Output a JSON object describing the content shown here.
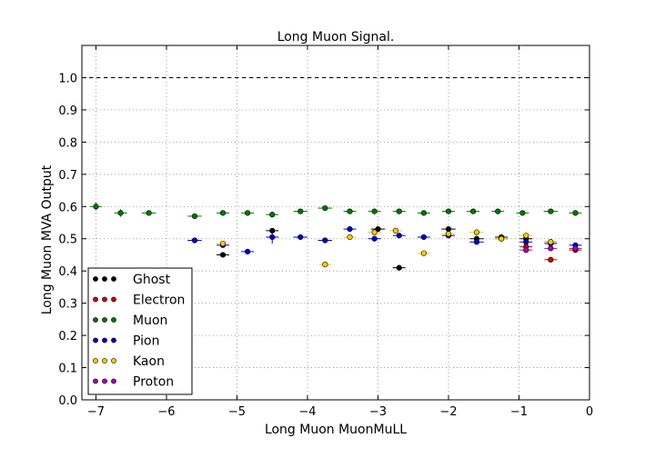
{
  "chart_data": {
    "type": "scatter",
    "title": "Long Muon Signal.",
    "xlabel": "Long Muon MuonMuLL",
    "ylabel": "Long Muon MVA Output",
    "xlim": [
      -7.2,
      0
    ],
    "ylim": [
      0,
      1.1
    ],
    "xticks": [
      -7,
      -6,
      -5,
      -4,
      -3,
      -2,
      -1,
      0
    ],
    "xtick_labels": [
      "−7",
      "−6",
      "−5",
      "−4",
      "−3",
      "−2",
      "−1",
      "0"
    ],
    "yticks": [
      0.0,
      0.1,
      0.2,
      0.3,
      0.4,
      0.5,
      0.6,
      0.7,
      0.8,
      0.9,
      1.0
    ],
    "ytick_labels": [
      "0.0",
      "0.1",
      "0.2",
      "0.3",
      "0.4",
      "0.5",
      "0.6",
      "0.7",
      "0.8",
      "0.9",
      "1.0"
    ],
    "grid": true,
    "reference_line": 1.0,
    "legend_position": "lower-left",
    "series": [
      {
        "name": "Ghost",
        "color": "#000000",
        "points": [
          [
            -5.2,
            0.45,
            0.18,
            0.006
          ],
          [
            -4.5,
            0.525,
            0.18,
            0.008
          ],
          [
            -3.0,
            0.53,
            0.2,
            0.008
          ],
          [
            -2.7,
            0.41,
            0.18,
            0.005
          ],
          [
            -2.0,
            0.53,
            0.2,
            0.008
          ],
          [
            -1.6,
            0.5,
            0.2,
            0.007
          ],
          [
            -1.25,
            0.505,
            0.18,
            0.006
          ],
          [
            -0.9,
            0.5,
            0.18,
            0.006
          ],
          [
            -0.55,
            0.49,
            0.18,
            0.006
          ]
        ]
      },
      {
        "name": "Electron",
        "color": "#cc0000",
        "points": [
          [
            -0.9,
            0.475,
            0.18,
            0.006
          ],
          [
            -0.55,
            0.435,
            0.18,
            0.006
          ],
          [
            -0.2,
            0.465,
            0.18,
            0.006
          ]
        ]
      },
      {
        "name": "Muon",
        "color": "#007700",
        "points": [
          [
            -7.0,
            0.6,
            0.17,
            0.012
          ],
          [
            -6.65,
            0.58,
            0.18,
            0.012
          ],
          [
            -6.25,
            0.58,
            0.2,
            0.006
          ],
          [
            -5.6,
            0.57,
            0.2,
            0.008
          ],
          [
            -5.2,
            0.58,
            0.18,
            0.005
          ],
          [
            -4.85,
            0.58,
            0.18,
            0.004
          ],
          [
            -4.5,
            0.575,
            0.18,
            0.004
          ],
          [
            -4.1,
            0.585,
            0.2,
            0.004
          ],
          [
            -3.75,
            0.595,
            0.2,
            0.004
          ],
          [
            -3.4,
            0.585,
            0.18,
            0.004
          ],
          [
            -3.05,
            0.585,
            0.18,
            0.004
          ],
          [
            -2.7,
            0.585,
            0.18,
            0.004
          ],
          [
            -2.35,
            0.58,
            0.18,
            0.004
          ],
          [
            -2.0,
            0.585,
            0.18,
            0.004
          ],
          [
            -1.65,
            0.585,
            0.18,
            0.004
          ],
          [
            -1.3,
            0.585,
            0.18,
            0.004
          ],
          [
            -0.95,
            0.58,
            0.18,
            0.004
          ],
          [
            -0.55,
            0.585,
            0.2,
            0.004
          ],
          [
            -0.2,
            0.58,
            0.18,
            0.004
          ]
        ]
      },
      {
        "name": "Pion",
        "color": "#0000cc",
        "points": [
          [
            -5.6,
            0.495,
            0.2,
            0.005
          ],
          [
            -5.2,
            0.48,
            0.18,
            0.006
          ],
          [
            -4.85,
            0.46,
            0.18,
            0.006
          ],
          [
            -4.5,
            0.505,
            0.18,
            0.02
          ],
          [
            -4.1,
            0.505,
            0.2,
            0.008
          ],
          [
            -3.75,
            0.495,
            0.2,
            0.006
          ],
          [
            -3.4,
            0.53,
            0.18,
            0.008
          ],
          [
            -3.05,
            0.5,
            0.18,
            0.006
          ],
          [
            -2.7,
            0.51,
            0.18,
            0.006
          ],
          [
            -2.35,
            0.505,
            0.18,
            0.006
          ],
          [
            -2.0,
            0.51,
            0.18,
            0.006
          ],
          [
            -1.6,
            0.49,
            0.2,
            0.006
          ],
          [
            -1.25,
            0.5,
            0.18,
            0.006
          ],
          [
            -0.9,
            0.49,
            0.18,
            0.006
          ],
          [
            -0.55,
            0.485,
            0.18,
            0.006
          ],
          [
            -0.2,
            0.48,
            0.18,
            0.006
          ]
        ]
      },
      {
        "name": "Kaon",
        "color": "#ffcc00",
        "points": [
          [
            -5.2,
            0.485,
            0.18,
            0.008
          ],
          [
            -3.75,
            0.42,
            0.18,
            0.006
          ],
          [
            -3.4,
            0.505,
            0.18,
            0.006
          ],
          [
            -3.05,
            0.52,
            0.2,
            0.006
          ],
          [
            -2.75,
            0.525,
            0.18,
            0.006
          ],
          [
            -2.35,
            0.455,
            0.18,
            0.006
          ],
          [
            -2.0,
            0.515,
            0.18,
            0.006
          ],
          [
            -1.6,
            0.52,
            0.2,
            0.006
          ],
          [
            -1.25,
            0.5,
            0.18,
            0.006
          ],
          [
            -0.9,
            0.51,
            0.18,
            0.006
          ],
          [
            -0.55,
            0.49,
            0.18,
            0.006
          ]
        ]
      },
      {
        "name": "Proton",
        "color": "#aa00aa",
        "points": [
          [
            -0.9,
            0.465,
            0.18,
            0.006
          ],
          [
            -0.55,
            0.47,
            0.18,
            0.006
          ],
          [
            -0.2,
            0.47,
            0.18,
            0.006
          ]
        ]
      }
    ]
  }
}
